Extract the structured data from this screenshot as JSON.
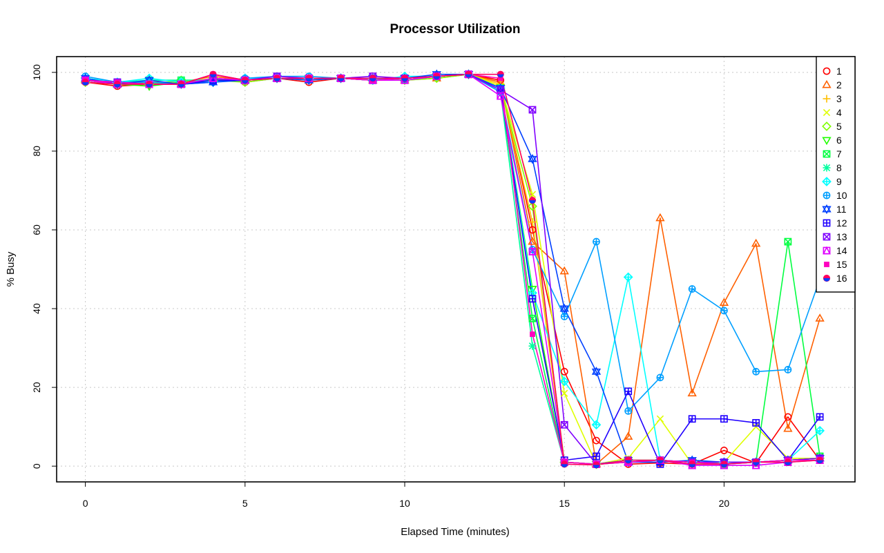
{
  "chart_data": {
    "type": "line",
    "title": "Processor Utilization",
    "xlabel": "Elapsed Time (minutes)",
    "ylabel": "% Busy",
    "xlim": [
      -0.9,
      24.1
    ],
    "ylim": [
      -4,
      104
    ],
    "xticks": [
      0,
      5,
      10,
      15,
      20
    ],
    "yticks": [
      0,
      20,
      40,
      60,
      80,
      100
    ],
    "x_tick_labels": [
      "0",
      "5",
      "10",
      "15",
      "20"
    ],
    "y_tick_labels": [
      "0",
      "20",
      "40",
      "60",
      "80",
      "100"
    ],
    "grid": true,
    "legend_position": "top-right",
    "x": [
      0,
      1,
      2,
      3,
      4,
      5,
      6,
      7,
      8,
      9,
      10,
      11,
      12,
      13,
      14,
      15,
      16,
      17,
      18,
      19,
      20,
      21,
      22,
      23
    ],
    "series": [
      {
        "name": "1",
        "color": "#ff0000",
        "marker": "circle-open",
        "values": [
          97.5,
          96.5,
          97.0,
          97.0,
          98.5,
          97.5,
          98.5,
          97.5,
          98.5,
          98.0,
          98.0,
          99.0,
          99.5,
          98.0,
          60.0,
          24.0,
          6.5,
          0.5,
          0.8,
          0.5,
          4.0,
          0.8,
          12.5,
          1.5
        ]
      },
      {
        "name": "2",
        "color": "#ff6000",
        "marker": "triangle-up-open",
        "values": [
          98.0,
          97.0,
          97.5,
          97.5,
          99.0,
          98.0,
          98.5,
          98.0,
          98.5,
          98.0,
          98.0,
          98.5,
          99.5,
          97.5,
          57.0,
          49.5,
          0.5,
          7.5,
          63.0,
          18.5,
          41.5,
          56.5,
          9.5,
          37.5
        ]
      },
      {
        "name": "3",
        "color": "#ffbf00",
        "marker": "plus",
        "values": [
          98.0,
          97.0,
          97.0,
          97.5,
          98.0,
          98.0,
          98.5,
          98.5,
          98.5,
          98.5,
          98.0,
          99.0,
          99.5,
          97.0,
          62.0,
          1.0,
          0.5,
          1.5,
          1.5,
          1.0,
          1.0,
          1.0,
          1.5,
          2.0
        ]
      },
      {
        "name": "4",
        "color": "#dfff00",
        "marker": "x",
        "values": [
          98.5,
          97.5,
          97.0,
          97.5,
          98.5,
          98.0,
          98.5,
          98.0,
          98.5,
          98.5,
          98.5,
          99.0,
          99.5,
          96.5,
          69.0,
          18.5,
          0.5,
          2.0,
          12.0,
          0.5,
          1.0,
          10.0,
          2.0,
          2.0
        ]
      },
      {
        "name": "5",
        "color": "#80ff00",
        "marker": "diamond-open",
        "values": [
          97.5,
          97.0,
          97.0,
          98.0,
          98.0,
          97.5,
          98.5,
          98.5,
          98.5,
          98.0,
          98.0,
          98.5,
          99.5,
          96.0,
          66.0,
          1.0,
          0.5,
          1.5,
          1.5,
          1.0,
          1.0,
          1.0,
          1.5,
          2.0
        ]
      },
      {
        "name": "6",
        "color": "#20ff00",
        "marker": "triangle-down-open",
        "values": [
          98.0,
          97.0,
          96.5,
          97.5,
          98.0,
          98.0,
          98.5,
          98.5,
          98.5,
          98.5,
          98.5,
          99.0,
          99.5,
          96.0,
          45.0,
          1.0,
          0.5,
          1.5,
          1.5,
          1.0,
          1.0,
          1.0,
          1.5,
          2.0
        ]
      },
      {
        "name": "7",
        "color": "#00ff40",
        "marker": "square-x",
        "values": [
          98.0,
          97.0,
          98.0,
          98.0,
          98.0,
          98.0,
          98.5,
          98.5,
          98.5,
          98.0,
          98.5,
          99.0,
          99.5,
          96.0,
          37.5,
          1.0,
          0.5,
          1.0,
          1.5,
          1.0,
          0.5,
          1.0,
          57.0,
          2.5
        ]
      },
      {
        "name": "8",
        "color": "#00ff9f",
        "marker": "asterisk",
        "values": [
          98.5,
          97.5,
          98.0,
          98.0,
          98.0,
          98.0,
          98.5,
          98.5,
          98.5,
          98.5,
          98.5,
          99.0,
          99.5,
          95.0,
          30.5,
          1.0,
          0.5,
          1.0,
          1.5,
          1.0,
          0.5,
          1.0,
          1.5,
          2.0
        ]
      },
      {
        "name": "9",
        "color": "#00ffff",
        "marker": "diamond-plus",
        "values": [
          98.5,
          97.5,
          98.5,
          97.5,
          97.5,
          98.5,
          98.5,
          98.5,
          98.5,
          98.0,
          99.0,
          99.0,
          99.5,
          96.0,
          44.0,
          21.5,
          10.5,
          48.0,
          1.5,
          1.0,
          1.0,
          1.0,
          1.5,
          9.0
        ]
      },
      {
        "name": "10",
        "color": "#009fff",
        "marker": "circle-plus",
        "values": [
          99.0,
          97.5,
          97.5,
          97.0,
          97.5,
          98.5,
          99.0,
          99.0,
          98.5,
          98.0,
          98.0,
          99.0,
          99.5,
          95.0,
          55.0,
          38.0,
          57.0,
          14.0,
          22.5,
          45.0,
          39.5,
          24.0,
          24.5,
          47.5
        ]
      },
      {
        "name": "11",
        "color": "#0040ff",
        "marker": "star-of-david",
        "values": [
          98.5,
          97.0,
          98.0,
          97.0,
          97.5,
          98.0,
          98.5,
          98.0,
          98.5,
          98.5,
          98.5,
          99.5,
          99.5,
          96.0,
          78.0,
          40.0,
          24.0,
          1.0,
          1.0,
          1.5,
          1.0,
          1.0,
          1.5,
          2.0
        ]
      },
      {
        "name": "12",
        "color": "#2000ff",
        "marker": "square-plus",
        "values": [
          98.0,
          97.5,
          97.0,
          97.0,
          98.0,
          98.0,
          98.5,
          98.5,
          98.5,
          98.0,
          98.5,
          99.0,
          99.5,
          95.5,
          42.5,
          1.5,
          2.5,
          19.0,
          0.5,
          12.0,
          12.0,
          11.0,
          1.5,
          12.5
        ]
      },
      {
        "name": "13",
        "color": "#8000ff",
        "marker": "square-x",
        "values": [
          98.0,
          97.5,
          97.0,
          97.0,
          98.5,
          98.0,
          99.0,
          98.5,
          98.5,
          99.0,
          98.5,
          99.0,
          99.5,
          95.5,
          90.5,
          10.5,
          0.5,
          1.5,
          1.5,
          1.0,
          1.0,
          1.0,
          1.5,
          2.0
        ]
      },
      {
        "name": "14",
        "color": "#df00ff",
        "marker": "square-triangle",
        "values": [
          98.0,
          97.0,
          97.0,
          97.0,
          98.5,
          98.0,
          98.5,
          98.5,
          98.5,
          98.0,
          98.0,
          99.0,
          99.5,
          94.0,
          54.5,
          1.0,
          0.5,
          1.0,
          1.5,
          0.2,
          0.2,
          0.2,
          1.0,
          1.5
        ]
      },
      {
        "name": "15",
        "color": "#ff00bf",
        "marker": "square-filled",
        "values": [
          98.0,
          97.5,
          97.0,
          97.0,
          99.5,
          98.0,
          98.5,
          98.5,
          98.5,
          98.0,
          98.5,
          99.0,
          99.5,
          98.5,
          33.5,
          1.0,
          0.5,
          1.0,
          1.5,
          1.0,
          0.5,
          1.0,
          1.5,
          1.5
        ]
      },
      {
        "name": "16",
        "color": "#ff0060",
        "marker": "circle-half",
        "values": [
          97.5,
          97.0,
          97.0,
          97.0,
          99.5,
          98.0,
          98.5,
          98.5,
          98.5,
          98.5,
          98.5,
          99.0,
          99.5,
          99.5,
          67.5,
          0.5,
          0.3,
          1.5,
          1.5,
          0.5,
          0.5,
          1.0,
          1.0,
          1.5
        ]
      }
    ]
  }
}
